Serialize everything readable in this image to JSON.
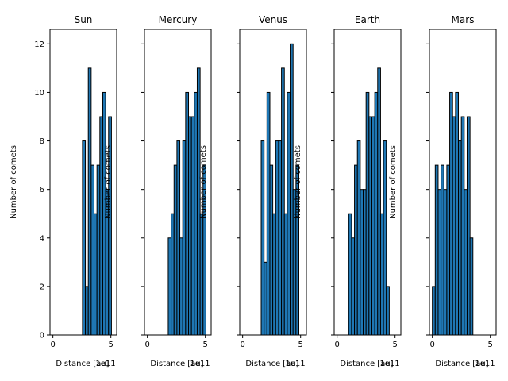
{
  "chart_data": [
    {
      "type": "bar",
      "title": "Sun",
      "xlabel": "Distance [au]",
      "ylabel": "Number of comets",
      "offset_text": "1e11",
      "xticks": [
        "0",
        "5"
      ],
      "xlim": [
        -0.25,
        5.5
      ],
      "ylim": [
        0,
        12.6
      ],
      "yticks": [
        "0",
        "2",
        "4",
        "6",
        "8",
        "10",
        "12"
      ],
      "bars": [
        {
          "x0": 2.55,
          "x1": 2.8,
          "value": 8
        },
        {
          "x0": 2.8,
          "x1": 3.05,
          "value": 2
        },
        {
          "x0": 3.05,
          "x1": 3.3,
          "value": 11
        },
        {
          "x0": 3.3,
          "x1": 3.55,
          "value": 7
        },
        {
          "x0": 3.55,
          "x1": 3.8,
          "value": 5
        },
        {
          "x0": 3.8,
          "x1": 4.05,
          "value": 7
        },
        {
          "x0": 4.05,
          "x1": 4.3,
          "value": 9
        },
        {
          "x0": 4.3,
          "x1": 4.55,
          "value": 10
        },
        {
          "x0": 4.55,
          "x1": 4.8,
          "value": 6
        },
        {
          "x0": 4.8,
          "x1": 5.05,
          "value": 9
        }
      ]
    },
    {
      "type": "bar",
      "title": "Mercury",
      "xlabel": "Distance [au]",
      "ylabel": "Number of comets",
      "offset_text": "1e11",
      "xticks": [
        "0",
        "5"
      ],
      "xlim": [
        -0.25,
        5.5
      ],
      "ylim": [
        0,
        12.6
      ],
      "yticks": [
        "0",
        "2",
        "4",
        "6",
        "8",
        "10",
        "12"
      ],
      "bars": [
        {
          "x0": 1.8,
          "x1": 2.05,
          "value": 4
        },
        {
          "x0": 2.05,
          "x1": 2.3,
          "value": 5
        },
        {
          "x0": 2.3,
          "x1": 2.55,
          "value": 7
        },
        {
          "x0": 2.55,
          "x1": 2.8,
          "value": 8
        },
        {
          "x0": 2.8,
          "x1": 3.05,
          "value": 4
        },
        {
          "x0": 3.05,
          "x1": 3.3,
          "value": 8
        },
        {
          "x0": 3.3,
          "x1": 3.55,
          "value": 10
        },
        {
          "x0": 3.55,
          "x1": 3.8,
          "value": 9
        },
        {
          "x0": 3.8,
          "x1": 4.05,
          "value": 9
        },
        {
          "x0": 4.05,
          "x1": 4.3,
          "value": 10
        },
        {
          "x0": 4.3,
          "x1": 4.55,
          "value": 11
        },
        {
          "x0": 4.55,
          "x1": 4.8,
          "value": 5
        },
        {
          "x0": 4.8,
          "x1": 5.05,
          "value": 7
        }
      ]
    },
    {
      "type": "bar",
      "title": "Venus",
      "xlabel": "Distance [au]",
      "ylabel": "Number of comets",
      "offset_text": "1e11",
      "xticks": [
        "0",
        "5"
      ],
      "xlim": [
        -0.25,
        5.5
      ],
      "ylim": [
        0,
        12.6
      ],
      "yticks": [
        "0",
        "2",
        "4",
        "6",
        "8",
        "10",
        "12"
      ],
      "bars": [
        {
          "x0": 1.6,
          "x1": 1.85,
          "value": 8
        },
        {
          "x0": 1.85,
          "x1": 2.1,
          "value": 3
        },
        {
          "x0": 2.1,
          "x1": 2.35,
          "value": 10
        },
        {
          "x0": 2.35,
          "x1": 2.6,
          "value": 7
        },
        {
          "x0": 2.6,
          "x1": 2.85,
          "value": 5
        },
        {
          "x0": 2.85,
          "x1": 3.1,
          "value": 8
        },
        {
          "x0": 3.1,
          "x1": 3.35,
          "value": 8
        },
        {
          "x0": 3.35,
          "x1": 3.6,
          "value": 11
        },
        {
          "x0": 3.6,
          "x1": 3.85,
          "value": 5
        },
        {
          "x0": 3.85,
          "x1": 4.1,
          "value": 10
        },
        {
          "x0": 4.1,
          "x1": 4.35,
          "value": 12
        },
        {
          "x0": 4.35,
          "x1": 4.6,
          "value": 6
        },
        {
          "x0": 4.6,
          "x1": 4.85,
          "value": 7
        }
      ]
    },
    {
      "type": "bar",
      "title": "Earth",
      "xlabel": "Distance [au]",
      "ylabel": "Number of comets",
      "offset_text": "1e11",
      "xticks": [
        "0",
        "5"
      ],
      "xlim": [
        -0.25,
        5.5
      ],
      "ylim": [
        0,
        12.6
      ],
      "yticks": [
        "0",
        "2",
        "4",
        "6",
        "8",
        "10",
        "12"
      ],
      "bars": [
        {
          "x0": 1.0,
          "x1": 1.25,
          "value": 5
        },
        {
          "x0": 1.25,
          "x1": 1.5,
          "value": 4
        },
        {
          "x0": 1.5,
          "x1": 1.75,
          "value": 7
        },
        {
          "x0": 1.75,
          "x1": 2.0,
          "value": 8
        },
        {
          "x0": 2.0,
          "x1": 2.25,
          "value": 6
        },
        {
          "x0": 2.25,
          "x1": 2.5,
          "value": 6
        },
        {
          "x0": 2.5,
          "x1": 2.75,
          "value": 10
        },
        {
          "x0": 2.75,
          "x1": 3.0,
          "value": 9
        },
        {
          "x0": 3.0,
          "x1": 3.25,
          "value": 9
        },
        {
          "x0": 3.25,
          "x1": 3.5,
          "value": 10
        },
        {
          "x0": 3.5,
          "x1": 3.75,
          "value": 11
        },
        {
          "x0": 3.75,
          "x1": 4.0,
          "value": 5
        },
        {
          "x0": 4.0,
          "x1": 4.25,
          "value": 8
        },
        {
          "x0": 4.25,
          "x1": 4.5,
          "value": 2
        }
      ]
    },
    {
      "type": "bar",
      "title": "Mars",
      "xlabel": "Distance [au]",
      "ylabel": "Number of comets",
      "offset_text": "1e11",
      "xticks": [
        "0",
        "5"
      ],
      "xlim": [
        -0.25,
        5.5
      ],
      "ylim": [
        0,
        12.6
      ],
      "yticks": [
        "0",
        "2",
        "4",
        "6",
        "8",
        "10",
        "12"
      ],
      "bars": [
        {
          "x0": 0.0,
          "x1": 0.25,
          "value": 2
        },
        {
          "x0": 0.25,
          "x1": 0.5,
          "value": 7
        },
        {
          "x0": 0.5,
          "x1": 0.75,
          "value": 6
        },
        {
          "x0": 0.75,
          "x1": 1.0,
          "value": 7
        },
        {
          "x0": 1.0,
          "x1": 1.25,
          "value": 6
        },
        {
          "x0": 1.25,
          "x1": 1.5,
          "value": 7
        },
        {
          "x0": 1.5,
          "x1": 1.75,
          "value": 10
        },
        {
          "x0": 1.75,
          "x1": 2.0,
          "value": 9
        },
        {
          "x0": 2.0,
          "x1": 2.25,
          "value": 10
        },
        {
          "x0": 2.25,
          "x1": 2.5,
          "value": 8
        },
        {
          "x0": 2.5,
          "x1": 2.75,
          "value": 9
        },
        {
          "x0": 2.75,
          "x1": 3.0,
          "value": 6
        },
        {
          "x0": 3.0,
          "x1": 3.25,
          "value": 9
        },
        {
          "x0": 3.25,
          "x1": 3.5,
          "value": 4
        }
      ]
    }
  ],
  "colors": {
    "bar_fill": "#1f77b4",
    "bar_edge": "#000000",
    "axes": "#000000",
    "background": "#ffffff"
  }
}
